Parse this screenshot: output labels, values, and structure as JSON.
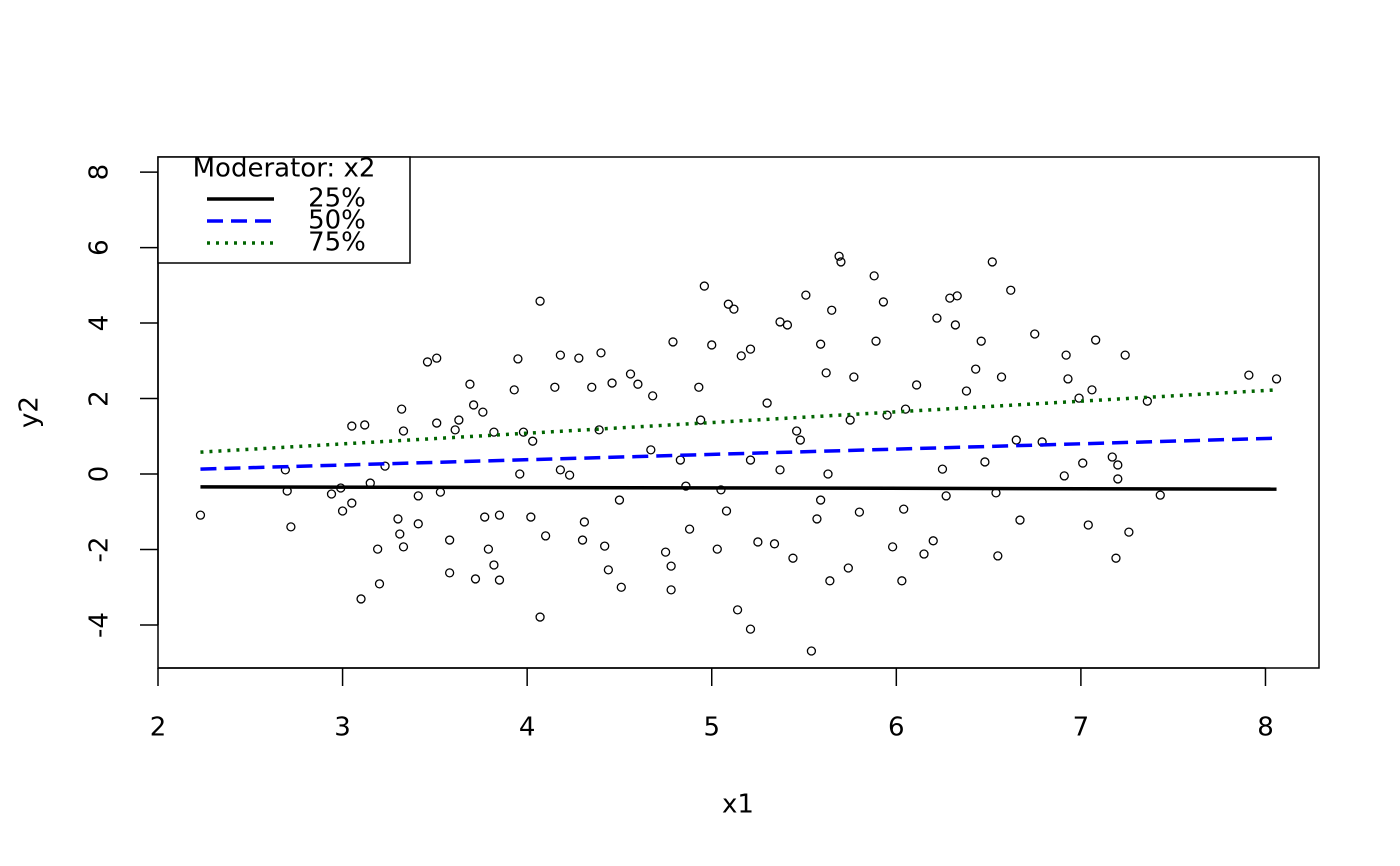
{
  "chart_data": {
    "type": "scatter",
    "x_label": "x1",
    "y_label": "y2",
    "xlim": [
      2.0,
      8.29
    ],
    "ylim": [
      -5.14,
      8.4
    ],
    "xticks": [
      2,
      3,
      4,
      5,
      6,
      7,
      8
    ],
    "yticks": [
      -4,
      -2,
      0,
      2,
      4,
      6,
      8
    ],
    "legend_title": "Moderator: x2",
    "legend_position": "top-left",
    "points": {
      "color": "#000000",
      "x": [
        2.23,
        2.69,
        2.7,
        2.72,
        2.94,
        2.99,
        3.0,
        3.05,
        3.05,
        3.1,
        3.12,
        3.15,
        3.19,
        3.2,
        3.23,
        3.3,
        3.31,
        3.32,
        3.33,
        3.33,
        3.41,
        3.41,
        3.46,
        3.51,
        3.51,
        3.53,
        3.58,
        3.58,
        3.61,
        3.63,
        3.69,
        3.71,
        3.72,
        3.76,
        3.77,
        3.79,
        3.82,
        3.82,
        3.85,
        3.85,
        3.93,
        3.95,
        3.96,
        3.98,
        4.02,
        4.03,
        4.07,
        4.07,
        4.1,
        4.15,
        4.18,
        4.23,
        4.28,
        4.3,
        4.31,
        4.35,
        4.4,
        4.42,
        4.44,
        4.46,
        4.51,
        4.56,
        4.6,
        4.68,
        4.75,
        4.78,
        4.78,
        4.79,
        4.86,
        4.88,
        4.93,
        4.96,
        5.0,
        5.03,
        5.08,
        5.09,
        5.12,
        5.14,
        5.16,
        5.21,
        5.21,
        5.25,
        5.3,
        5.34,
        5.37,
        5.41,
        5.44,
        5.46,
        5.51,
        5.54,
        5.57,
        5.59,
        5.62,
        5.63,
        5.64,
        5.65,
        5.69,
        5.7,
        5.74,
        5.77,
        5.8,
        5.88,
        5.89,
        5.93,
        5.95,
        5.98,
        6.03,
        6.04,
        6.05,
        6.11,
        6.15,
        6.2,
        6.22,
        6.25,
        6.27,
        6.29,
        6.32,
        6.33,
        6.38,
        6.43,
        6.46,
        6.48,
        6.52,
        6.54,
        6.55,
        6.57,
        6.62,
        6.65,
        6.67,
        6.75,
        6.79,
        6.91,
        6.92,
        6.93,
        6.99,
        7.01,
        7.04,
        7.06,
        7.08,
        7.17,
        7.19,
        7.2,
        7.2,
        7.24,
        7.26,
        7.36,
        7.43,
        7.91,
        8.06,
        4.39,
        4.67,
        4.94,
        5.21,
        5.48,
        5.75,
        4.5,
        5.05,
        5.59,
        4.18,
        4.83,
        5.37
      ],
      "y": [
        -1.09,
        0.11,
        -0.45,
        -1.4,
        -0.53,
        -0.37,
        -0.98,
        1.27,
        -0.77,
        -3.31,
        1.3,
        -0.24,
        -1.99,
        -2.91,
        0.21,
        -1.19,
        -1.59,
        1.72,
        -1.93,
        1.14,
        -0.58,
        -1.32,
        2.97,
        3.07,
        1.35,
        -0.48,
        -1.75,
        -2.62,
        1.17,
        1.43,
        2.38,
        1.83,
        -2.78,
        1.64,
        -1.14,
        -1.99,
        1.11,
        -2.41,
        -2.81,
        -1.09,
        2.23,
        3.05,
        0.0,
        1.11,
        -1.14,
        0.87,
        4.58,
        -3.79,
        -1.64,
        2.3,
        3.15,
        -0.03,
        3.07,
        -1.75,
        -1.27,
        2.3,
        3.21,
        -1.91,
        -2.54,
        2.41,
        -3.0,
        2.65,
        2.38,
        2.07,
        -2.07,
        -2.44,
        -3.07,
        3.5,
        -0.32,
        -1.46,
        2.3,
        4.98,
        3.42,
        -1.99,
        -0.98,
        4.5,
        4.37,
        -3.6,
        3.13,
        -4.11,
        3.31,
        -1.8,
        1.88,
        -1.85,
        4.03,
        3.95,
        -2.23,
        1.14,
        4.74,
        -4.69,
        -1.19,
        3.44,
        2.68,
        0.0,
        -2.83,
        4.34,
        5.77,
        5.62,
        -2.49,
        2.57,
        -1.01,
        5.25,
        3.52,
        4.56,
        1.56,
        -1.93,
        -2.83,
        -0.93,
        1.72,
        2.36,
        -2.12,
        -1.77,
        4.13,
        0.13,
        -0.58,
        4.66,
        3.95,
        4.72,
        2.2,
        2.78,
        3.52,
        0.32,
        5.62,
        -0.5,
        -2.17,
        2.57,
        4.87,
        0.9,
        -1.22,
        3.71,
        0.85,
        -0.05,
        3.15,
        2.52,
        2.01,
        0.29,
        -1.35,
        2.23,
        3.55,
        0.45,
        -2.23,
        0.24,
        -0.13,
        3.15,
        -1.54,
        1.93,
        -0.56,
        2.62,
        2.52,
        1.17,
        0.64,
        1.43,
        0.37,
        0.9,
        1.43,
        -0.69,
        -0.42,
        -0.69,
        0.11,
        0.37,
        0.11
      ]
    },
    "lines": [
      {
        "name": "25%",
        "color": "#000000",
        "dash": "solid",
        "x": [
          2.23,
          8.06
        ],
        "y": [
          -0.34,
          -0.4
        ]
      },
      {
        "name": "50%",
        "color": "#0000ff",
        "dash": "dashed",
        "x": [
          2.23,
          8.06
        ],
        "y": [
          0.13,
          0.95
        ]
      },
      {
        "name": "75%",
        "color": "#006400",
        "dash": "dotted",
        "x": [
          2.23,
          8.06
        ],
        "y": [
          0.58,
          2.23
        ]
      }
    ]
  }
}
